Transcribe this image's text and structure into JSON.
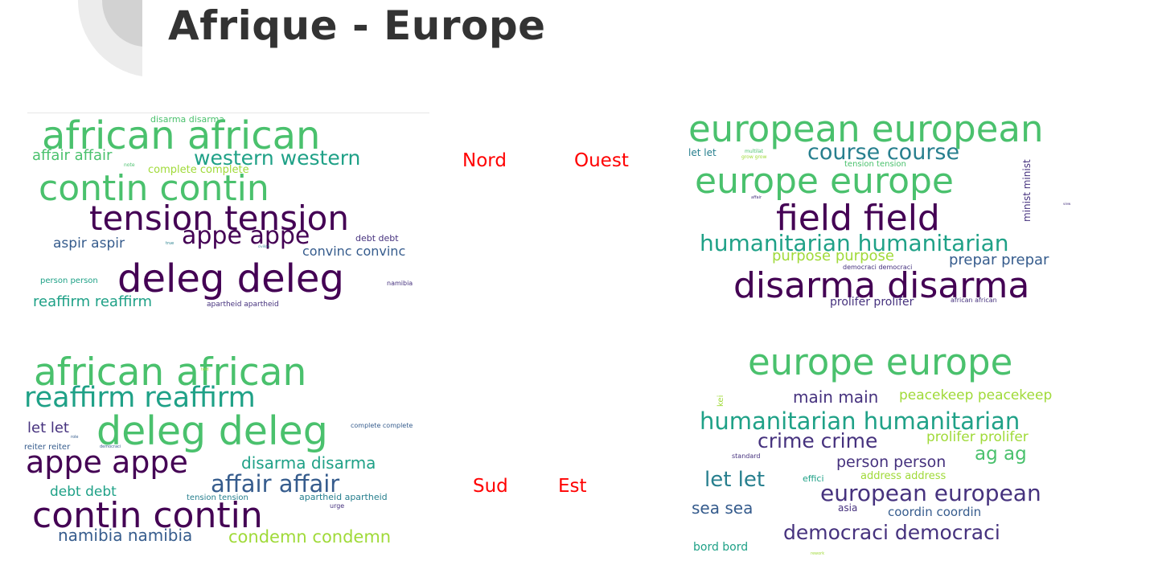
{
  "title": "Afrique - Europe",
  "colors": {
    "title": "#333333",
    "label": "#ff0000",
    "palette": [
      "#440154",
      "#46327e",
      "#365c8d",
      "#277f8e",
      "#1fa187",
      "#4ac16d",
      "#a0da39",
      "#fde725"
    ]
  },
  "regions": {
    "nord": {
      "label": "Nord",
      "words": [
        {
          "text": "disarma disarma",
          "color": "#4ac16d",
          "size": 11
        },
        {
          "text": "african african",
          "color": "#4ac16d",
          "size": 48
        },
        {
          "text": "affair affair",
          "color": "#4ac16d",
          "size": 18
        },
        {
          "text": "western western",
          "color": "#1fa187",
          "size": 25
        },
        {
          "text": "note",
          "color": "#4ac16d",
          "size": 6
        },
        {
          "text": "complete complete",
          "color": "#a0da39",
          "size": 13
        },
        {
          "text": "contin contin",
          "color": "#4ac16d",
          "size": 44
        },
        {
          "text": "tension tension",
          "color": "#440154",
          "size": 42
        },
        {
          "text": "appe appe",
          "color": "#440154",
          "size": 30
        },
        {
          "text": "aspir aspir",
          "color": "#365c8d",
          "size": 17
        },
        {
          "text": "true",
          "color": "#277f8e",
          "size": 5
        },
        {
          "text": "civilian",
          "color": "#277f8e",
          "size": 4
        },
        {
          "text": "debt debt",
          "color": "#46327e",
          "size": 11
        },
        {
          "text": "convinc convinc",
          "color": "#365c8d",
          "size": 16
        },
        {
          "text": "deleg deleg",
          "color": "#440154",
          "size": 48
        },
        {
          "text": "person person",
          "color": "#1fa187",
          "size": 10
        },
        {
          "text": "namibia",
          "color": "#46327e",
          "size": 8
        },
        {
          "text": "reaffirm reaffirm",
          "color": "#1fa187",
          "size": 18
        },
        {
          "text": "apartheid apartheid",
          "color": "#46327e",
          "size": 9
        }
      ]
    },
    "ouest": {
      "label": "Ouest",
      "words": [
        {
          "text": "european european",
          "color": "#4ac16d",
          "size": 45
        },
        {
          "text": "let let",
          "color": "#277f8e",
          "size": 12
        },
        {
          "text": "multilat",
          "color": "#4ac16d",
          "size": 6
        },
        {
          "text": "grow grow",
          "color": "#a0da39",
          "size": 6
        },
        {
          "text": "course course",
          "color": "#277f8e",
          "size": 27
        },
        {
          "text": "tension tension",
          "color": "#4ac16d",
          "size": 10
        },
        {
          "text": "minist minist",
          "color": "#46327e",
          "size": 12
        },
        {
          "text": "europe europe",
          "color": "#4ac16d",
          "size": 44
        },
        {
          "text": "affair",
          "color": "#46327e",
          "size": 5
        },
        {
          "text": "field field",
          "color": "#440154",
          "size": 44
        },
        {
          "text": "view",
          "color": "#46327e",
          "size": 4
        },
        {
          "text": "humanitarian humanitarian",
          "color": "#1fa187",
          "size": 28
        },
        {
          "text": "purpose purpose",
          "color": "#a0da39",
          "size": 18
        },
        {
          "text": "prepar prepar",
          "color": "#365c8d",
          "size": 18
        },
        {
          "text": "democraci democraci",
          "color": "#46327e",
          "size": 8
        },
        {
          "text": "disarma disarma",
          "color": "#440154",
          "size": 44
        },
        {
          "text": "prolifer prolifer",
          "color": "#46327e",
          "size": 14
        },
        {
          "text": "african african",
          "color": "#46327e",
          "size": 8
        }
      ]
    },
    "sud": {
      "label": "Sud",
      "words": [
        {
          "text": "african african",
          "color": "#4ac16d",
          "size": 47
        },
        {
          "text": "told",
          "color": "#a0da39",
          "size": 5
        },
        {
          "text": "reaffirm reaffirm",
          "color": "#1fa187",
          "size": 35
        },
        {
          "text": "let let",
          "color": "#46327e",
          "size": 18
        },
        {
          "text": "deleg deleg",
          "color": "#4ac16d",
          "size": 49
        },
        {
          "text": "complete complete",
          "color": "#365c8d",
          "size": 8
        },
        {
          "text": "role",
          "color": "#365c8d",
          "size": 5
        },
        {
          "text": "reiter reiter",
          "color": "#365c8d",
          "size": 10
        },
        {
          "text": "democraci",
          "color": "#365c8d",
          "size": 5
        },
        {
          "text": "appe appe",
          "color": "#440154",
          "size": 38
        },
        {
          "text": "disarma disarma",
          "color": "#1fa187",
          "size": 20
        },
        {
          "text": "affair affair",
          "color": "#365c8d",
          "size": 29
        },
        {
          "text": "debt debt",
          "color": "#1fa187",
          "size": 17
        },
        {
          "text": "tension tension",
          "color": "#277f8e",
          "size": 10
        },
        {
          "text": "apartheid apartheid",
          "color": "#277f8e",
          "size": 11
        },
        {
          "text": "urge",
          "color": "#46327e",
          "size": 8
        },
        {
          "text": "contin contin",
          "color": "#440154",
          "size": 44
        },
        {
          "text": "namibia namibia",
          "color": "#365c8d",
          "size": 20
        },
        {
          "text": "condemn condemn",
          "color": "#a0da39",
          "size": 21
        }
      ]
    },
    "est": {
      "label": "Est",
      "words": [
        {
          "text": "europe europe",
          "color": "#4ac16d",
          "size": 45
        },
        {
          "text": "kei",
          "color": "#a0da39",
          "size": 10
        },
        {
          "text": "main main",
          "color": "#46327e",
          "size": 20
        },
        {
          "text": "peacekeep peacekeep",
          "color": "#a0da39",
          "size": 17
        },
        {
          "text": "humanitarian humanitarian",
          "color": "#1fa187",
          "size": 29
        },
        {
          "text": "crime crime",
          "color": "#46327e",
          "size": 25
        },
        {
          "text": "prolifer prolifer",
          "color": "#a0da39",
          "size": 17
        },
        {
          "text": "standard",
          "color": "#46327e",
          "size": 8
        },
        {
          "text": "person person",
          "color": "#46327e",
          "size": 19
        },
        {
          "text": "ag ag",
          "color": "#4ac16d",
          "size": 23
        },
        {
          "text": "let let",
          "color": "#277f8e",
          "size": 26
        },
        {
          "text": "effici",
          "color": "#1fa187",
          "size": 11
        },
        {
          "text": "address address",
          "color": "#a0da39",
          "size": 13
        },
        {
          "text": "european european",
          "color": "#46327e",
          "size": 28
        },
        {
          "text": "sea sea",
          "color": "#365c8d",
          "size": 20
        },
        {
          "text": "asia",
          "color": "#46327e",
          "size": 12
        },
        {
          "text": "coordin coordin",
          "color": "#365c8d",
          "size": 15
        },
        {
          "text": "democraci democraci",
          "color": "#46327e",
          "size": 25
        },
        {
          "text": "bord bord",
          "color": "#1fa187",
          "size": 14
        },
        {
          "text": "rework",
          "color": "#a0da39",
          "size": 5
        }
      ]
    }
  }
}
